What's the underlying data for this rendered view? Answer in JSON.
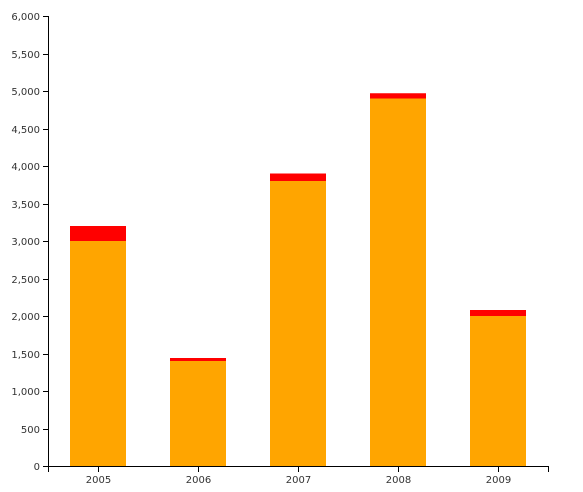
{
  "chart_data": {
    "type": "bar",
    "stacked": true,
    "categories": [
      "2005",
      "2006",
      "2007",
      "2008",
      "2009"
    ],
    "series": [
      {
        "values": [
          3000,
          1400,
          3800,
          4900,
          2000
        ],
        "color": "#FFA500"
      },
      {
        "values": [
          200,
          40,
          100,
          70,
          80
        ],
        "color": "#FF0000"
      }
    ],
    "title": "",
    "xlabel": "",
    "ylabel": "",
    "ylim": [
      0,
      6000
    ],
    "yticks": [
      0,
      500,
      1000,
      1500,
      2000,
      2500,
      3000,
      3500,
      4000,
      4500,
      5000,
      5500,
      6000
    ],
    "ytick_labels": [
      "0",
      "500",
      "1,000",
      "1,500",
      "2,000",
      "2,500",
      "3,000",
      "3,500",
      "4,000",
      "4,500",
      "5,000",
      "5,500",
      "6,000"
    ],
    "grid": false,
    "legend": "none"
  }
}
